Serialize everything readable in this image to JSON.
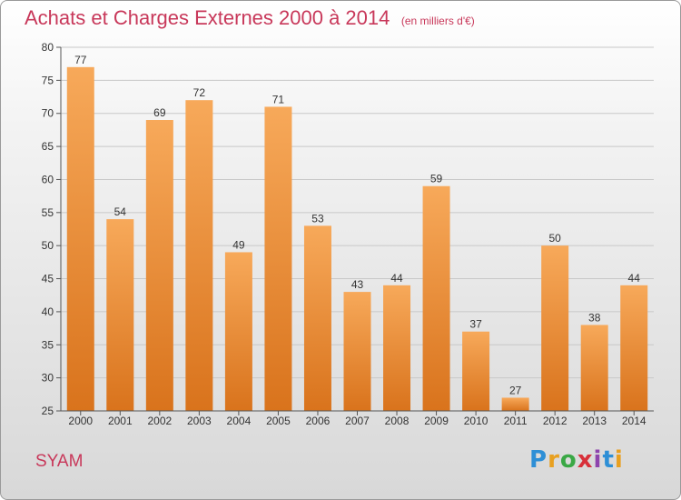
{
  "title": "Achats et Charges Externes 2000 à 2014",
  "subtitle": "(en milliers d'€)",
  "commune": "SYAM",
  "logo": {
    "text": "Proxiti",
    "colors": [
      "#2e8fd6",
      "#e8a020",
      "#3aa845",
      "#d8303a",
      "#8e44ad",
      "#2e8fd6",
      "#e8a020"
    ]
  },
  "colors": {
    "title": "#c8385a",
    "bar_light": "#f7a95a",
    "bar_dark": "#d9731c",
    "grid": "#c8c8c8"
  },
  "chart_data": {
    "type": "bar",
    "categories": [
      "2000",
      "2001",
      "2002",
      "2003",
      "2004",
      "2005",
      "2006",
      "2007",
      "2008",
      "2009",
      "2010",
      "2011",
      "2012",
      "2013",
      "2014"
    ],
    "values": [
      77,
      54,
      69,
      72,
      49,
      71,
      53,
      43,
      44,
      59,
      37,
      27,
      50,
      38,
      44
    ],
    "title": "Achats et Charges Externes 2000 à 2014",
    "ylim": [
      25,
      80
    ],
    "yticks": [
      25,
      30,
      35,
      40,
      45,
      50,
      55,
      60,
      65,
      70,
      75,
      80
    ],
    "grid": true
  }
}
